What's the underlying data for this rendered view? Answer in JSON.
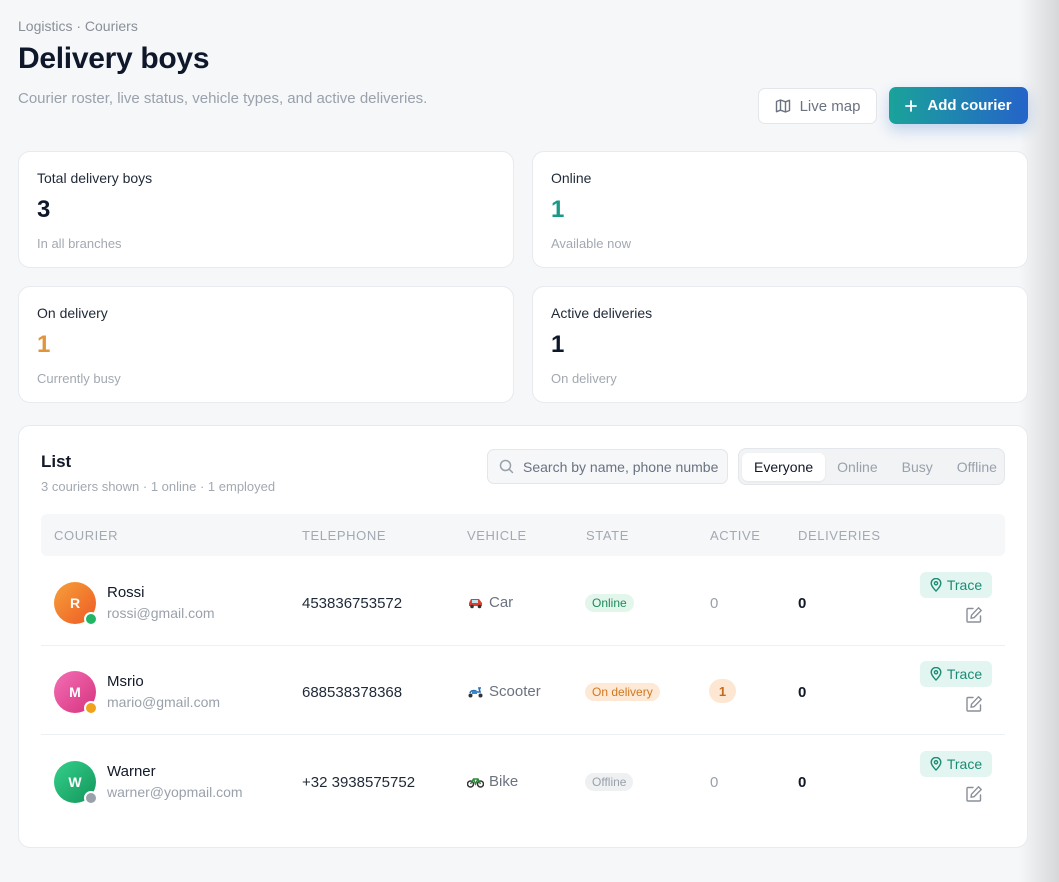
{
  "header": {
    "breadcrumb": "Logistics · Couriers",
    "title": "Delivery boys",
    "subtitle": "Courier roster, live status, vehicle types, and active deliveries.",
    "live_map_label": "Live map",
    "add_courier_label": "Add courier"
  },
  "stats": [
    {
      "label": "Total delivery boys",
      "value": "3",
      "sub": "In all branches",
      "color": "#0f172a"
    },
    {
      "label": "Online",
      "value": "1",
      "sub": "Available now",
      "color": "#1a9a86"
    },
    {
      "label": "On delivery",
      "value": "1",
      "sub": "Currently busy",
      "color": "#e0953b"
    },
    {
      "label": "Active deliveries",
      "value": "1",
      "sub": "On delivery",
      "color": "#0f172a"
    }
  ],
  "list": {
    "title": "List",
    "summary": "3 couriers shown · 1 online · 1 employed",
    "search_placeholder": "Search by name, phone number",
    "filters": [
      "Everyone",
      "Online",
      "Busy",
      "Offline"
    ],
    "active_filter": "Everyone",
    "columns": [
      "COURIER",
      "TELEPHONE",
      "VEHICLE",
      "STATE",
      "ACTIVE",
      "DELIVERIES"
    ],
    "trace_label": "Trace",
    "rows": [
      {
        "initial": "R",
        "name": "Rossi",
        "email": "rossi@gmail.com",
        "phone": "453836753572",
        "vehicle": "Car",
        "vehicle_icon": "car-icon",
        "state": "Online",
        "active": "0",
        "deliveries": "0",
        "avatar_color": "#f07a2a",
        "presence_color": "#22b566",
        "badge_bg": "#e2f6ec",
        "badge_fg": "#1f8a5a"
      },
      {
        "initial": "M",
        "name": "Msrio",
        "email": "mario@gmail.com",
        "phone": "688538378368",
        "vehicle": "Scooter",
        "vehicle_icon": "scooter-icon",
        "state": "On delivery",
        "active": "1",
        "deliveries": "0",
        "avatar_color": "#e94a98",
        "presence_color": "#f0a21c",
        "badge_bg": "#fde9d6",
        "badge_fg": "#d0781f"
      },
      {
        "initial": "W",
        "name": "Warner",
        "email": "warner@yopmail.com",
        "phone": "+32 3938575752",
        "vehicle": "Bike",
        "vehicle_icon": "bike-icon",
        "state": "Offline",
        "active": "0",
        "deliveries": "0",
        "avatar_color": "#1fb377",
        "presence_color": "#9aa1ab",
        "badge_bg": "#eef0f2",
        "badge_fg": "#9aa1ab"
      }
    ]
  }
}
